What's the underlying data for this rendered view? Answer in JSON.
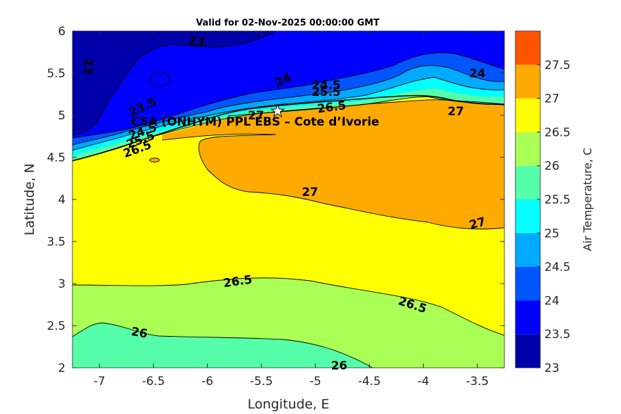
{
  "title": "Valid for 02-Nov-2025 00:00:00 GMT",
  "site_label": "CSA (ONHYM) PPL EBS  – Cote d’Ivorie",
  "chart_data": {
    "type": "filled-contour map",
    "variable": "Air Temperature",
    "units": "C",
    "xlabel": "Longitude, E",
    "ylabel": "Latitude, N",
    "colorbar_label": "Air Temperature, C",
    "xlim": [
      -7.25,
      -3.25
    ],
    "ylim": [
      2,
      6
    ],
    "xticks": [
      -7,
      -6.5,
      -6,
      -5.5,
      -5,
      -4.5,
      -4,
      -3.5
    ],
    "yticks": [
      2,
      2.5,
      3,
      3.5,
      4,
      4.5,
      5,
      5.5,
      6
    ],
    "colorbar_ticks": [
      23,
      23.5,
      24,
      24.5,
      25,
      25.5,
      26,
      26.5,
      27,
      27.5
    ],
    "levels": [
      23,
      23.5,
      24,
      24.5,
      25,
      25.5,
      26,
      26.5,
      27,
      27.5
    ],
    "colors": [
      "#0000aa",
      "#0000ff",
      "#0055ff",
      "#00aaff",
      "#00ffff",
      "#55ffaa",
      "#aaff55",
      "#ffff00",
      "#ffaa00",
      "#ff5500"
    ],
    "site": {
      "lon": -5.35,
      "lat": 5.05,
      "marker": "star"
    },
    "contour_labels": [
      {
        "text": "23",
        "lon": -6.1,
        "lat": 5.88,
        "angle": 12
      },
      {
        "text": "23",
        "lon": -7.1,
        "lat": 5.58,
        "angle": 90
      },
      {
        "text": "23.5",
        "lon": -6.6,
        "lat": 5.1,
        "angle": -25
      },
      {
        "text": "24",
        "lon": -5.3,
        "lat": 5.42,
        "angle": -25
      },
      {
        "text": "24.5",
        "lon": -4.9,
        "lat": 5.36,
        "angle": 0
      },
      {
        "text": "25.5",
        "lon": -4.9,
        "lat": 5.28,
        "angle": 0
      },
      {
        "text": "26.5",
        "lon": -4.85,
        "lat": 5.1,
        "angle": -8
      },
      {
        "text": "27",
        "lon": -5.55,
        "lat": 5.0,
        "angle": 0
      },
      {
        "text": "27",
        "lon": -3.7,
        "lat": 5.05,
        "angle": 0
      },
      {
        "text": "24",
        "lon": -3.5,
        "lat": 5.5,
        "angle": 0
      },
      {
        "text": "24.5",
        "lon": -6.6,
        "lat": 4.81,
        "angle": -20
      },
      {
        "text": "25.5",
        "lon": -6.62,
        "lat": 4.71,
        "angle": -20
      },
      {
        "text": "26.5",
        "lon": -6.65,
        "lat": 4.6,
        "angle": -20
      },
      {
        "text": "27",
        "lon": -5.05,
        "lat": 4.09,
        "angle": 0
      },
      {
        "text": "27",
        "lon": -3.5,
        "lat": 3.72,
        "angle": -15
      },
      {
        "text": "26.5",
        "lon": -5.72,
        "lat": 3.03,
        "angle": -8
      },
      {
        "text": "26.5",
        "lon": -4.1,
        "lat": 2.75,
        "angle": 18
      },
      {
        "text": "26",
        "lon": -6.63,
        "lat": 2.42,
        "angle": 10
      },
      {
        "text": "26",
        "lon": -4.78,
        "lat": 2.03,
        "angle": 0
      }
    ]
  }
}
